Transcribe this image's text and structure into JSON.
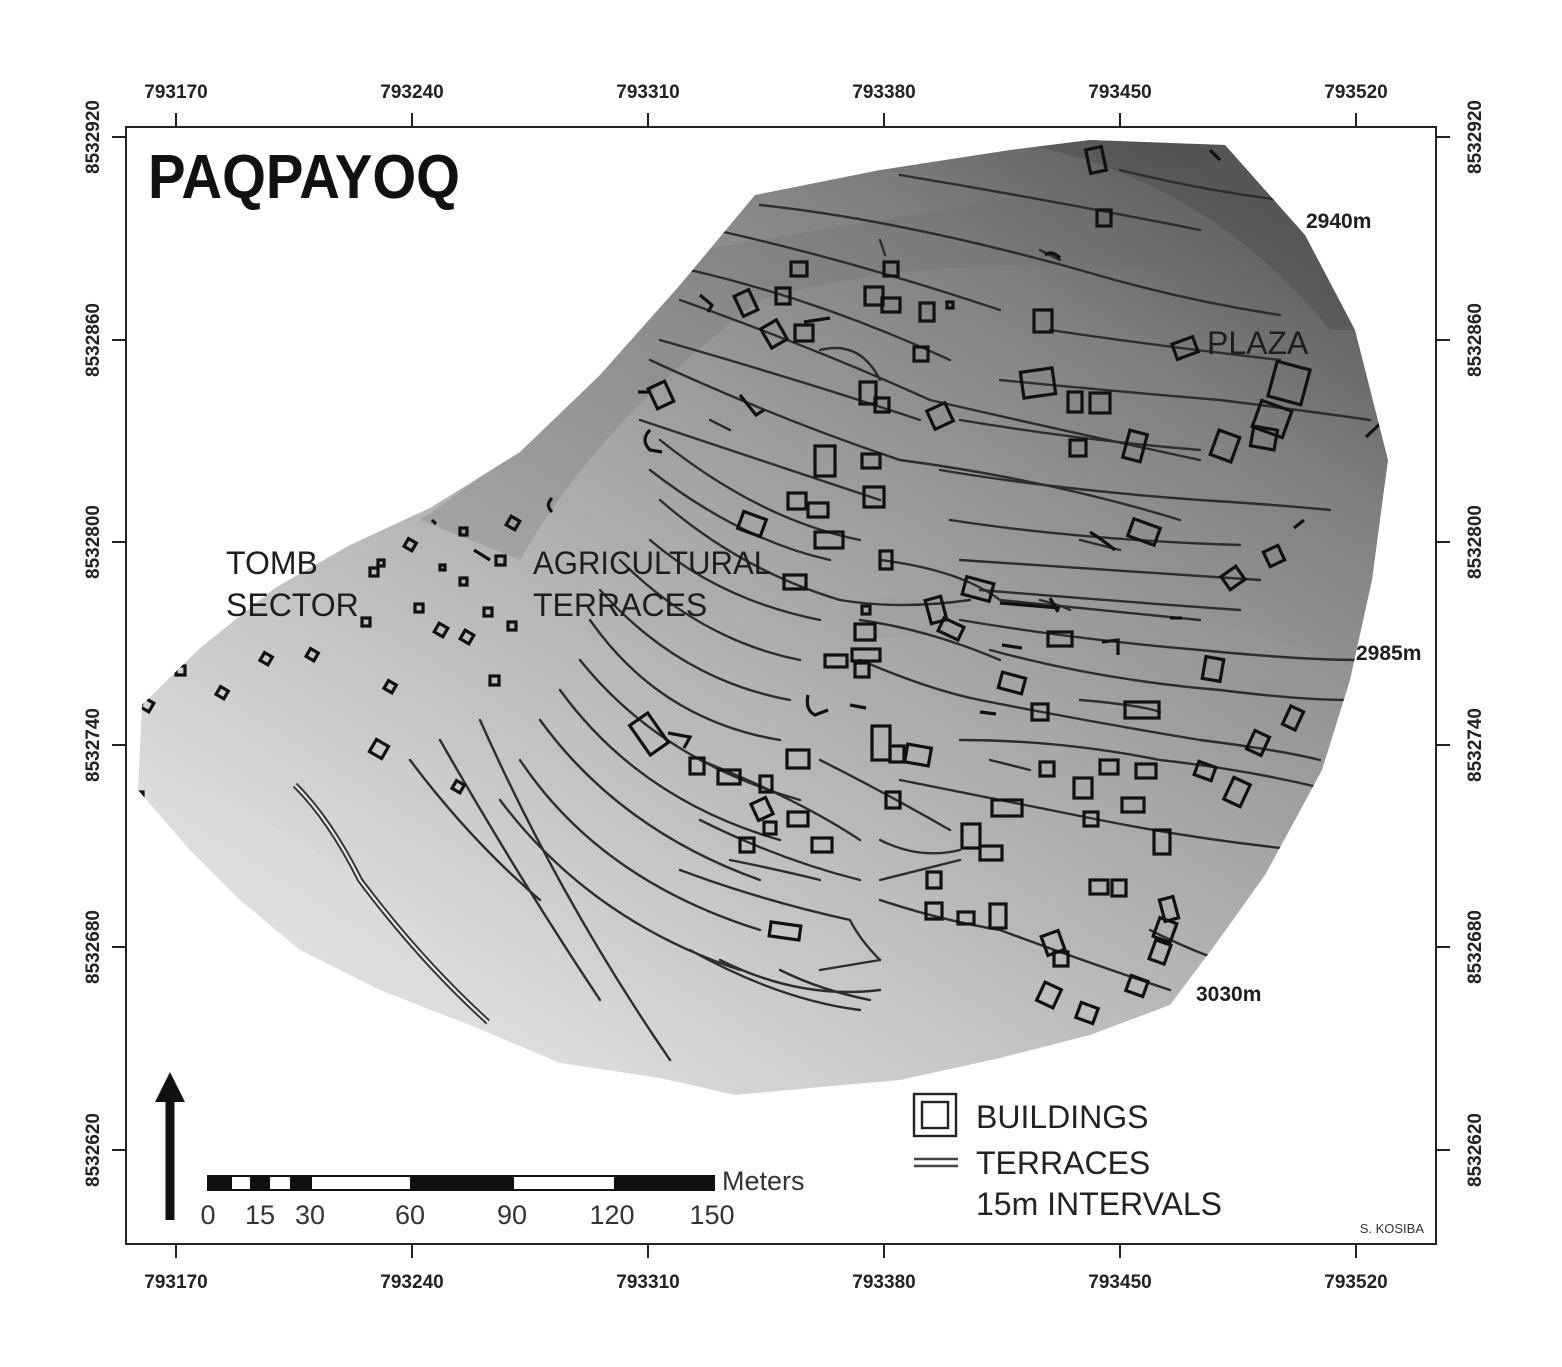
{
  "map": {
    "title": "PAQPAYOQ",
    "labels": {
      "tomb_line1": "TOMB",
      "tomb_line2": "SECTOR",
      "agri_line1": "AGRICULTURAL",
      "agri_line2": "TERRACES",
      "plaza": "PLAZA"
    },
    "contours": [
      "2940m",
      "2985m",
      "3030m"
    ],
    "x_ticks": [
      "793170",
      "793240",
      "793310",
      "793380",
      "793450",
      "793520"
    ],
    "y_ticks": [
      "8532920",
      "8532860",
      "8532800",
      "8532740",
      "8532680",
      "8532620"
    ],
    "legend": {
      "buildings": "BUILDINGS",
      "terraces": "TERRACES",
      "intervals": "15m INTERVALS"
    },
    "scale": {
      "unit": "Meters",
      "ticks": [
        "0",
        "15",
        "30",
        "60",
        "90",
        "120",
        "150"
      ]
    },
    "credit": "S. KOSIBA",
    "north_arrow": "north-arrow-icon"
  }
}
